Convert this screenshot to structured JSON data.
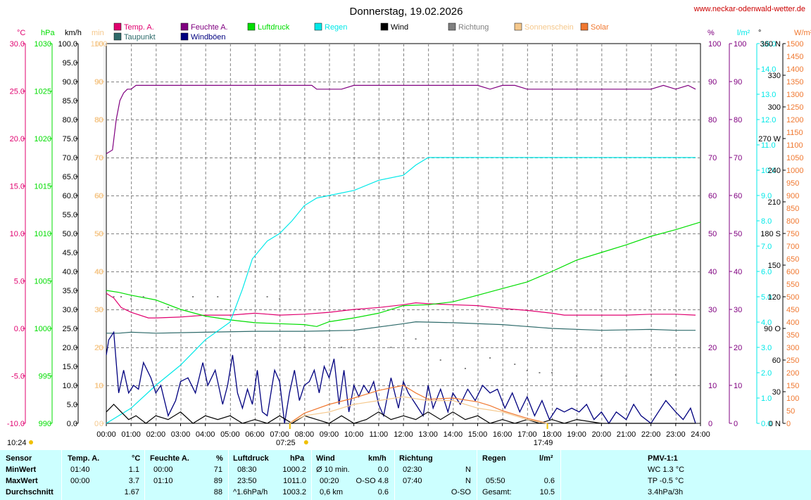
{
  "page": {
    "title": "Donnerstag, 19.02.2026",
    "site": "www.neckar-odenwald-wetter.de",
    "sunrise": "07:25",
    "sunset": "17:49",
    "moment": "10:24"
  },
  "colors": {
    "temp": "#e0006f",
    "humidity": "#800080",
    "pressure": "#00dd00",
    "rain": "#00e8e8",
    "wind": "#000000",
    "direction": "#808080",
    "sunshine": "#f5c88c",
    "solar": "#f07830",
    "dewpoint": "#2f6b6b",
    "gust": "#00007f",
    "grid": "#808080"
  },
  "legend": [
    {
      "label": "Temp. A.",
      "color": "#e0006f",
      "icon": "square-icon"
    },
    {
      "label": "Taupunkt",
      "color": "#2f6b6b",
      "icon": "square-icon"
    },
    {
      "label": "Feuchte A.",
      "color": "#800080",
      "icon": "square-icon"
    },
    {
      "label": "Windböen",
      "color": "#00007f",
      "icon": "square-icon"
    },
    {
      "label": "Luftdruck",
      "color": "#00dd00",
      "icon": "square-icon"
    },
    {
      "label": "Regen",
      "color": "#00e8e8",
      "icon": "square-icon"
    },
    {
      "label": "Wind",
      "color": "#000000",
      "icon": "square-icon"
    },
    {
      "label": "Richtung",
      "color": "#808080",
      "icon": "square-icon"
    },
    {
      "label": "Sonnenschein",
      "color": "#f5c88c",
      "icon": "square-icon"
    },
    {
      "label": "Solar",
      "color": "#f07830",
      "icon": "square-icon"
    }
  ],
  "stats": {
    "headers": {
      "sensor": "Sensor",
      "temp": "Temp. A.",
      "temp_unit": "°C",
      "hum": "Feuchte A.",
      "hum_unit": "%",
      "press": "Luftdruck",
      "press_unit": "hPa",
      "wind": "Wind",
      "wind_unit": "km/h",
      "dir": "Richtung",
      "rain": "Regen",
      "rain_unit": "l/m²",
      "pmv": "PMV-1:1"
    },
    "rows": [
      {
        "label": "MinWert",
        "temp_time": "01:40",
        "temp_val": "1.1",
        "hum_time": "00:00",
        "hum_val": "71",
        "press_time": "08:30",
        "press_val": "1000.2",
        "wind_time": "Ø 10 min.",
        "wind_val": "0.0",
        "dir_time": "02:30",
        "dir_val": "N",
        "rain_time": "",
        "rain_val": "",
        "pmv": "WC 1.3 °C"
      },
      {
        "label": "MaxWert",
        "temp_time": "00:00",
        "temp_val": "3.7",
        "hum_time": "01:10",
        "hum_val": "89",
        "press_time": "23:50",
        "press_val": "1011.0",
        "wind_time": "00:20",
        "wind_val": "O-SO 4.8",
        "dir_time": "07:40",
        "dir_val": "N",
        "rain_time": "05:50",
        "rain_val": "0.6",
        "pmv": "TP -0.5 °C"
      },
      {
        "label": "Durchschnitt",
        "temp_time": "",
        "temp_val": "1.67",
        "hum_time": "",
        "hum_val": "88",
        "press_time": "^1.6hPa/h",
        "press_val": "1003.2",
        "wind_time": "0,6 km",
        "wind_val": "0.6",
        "dir_time": "",
        "dir_val": "O-SO",
        "rain_time": "Gesamt:",
        "rain_val": "10.5",
        "pmv": "3.4hPa/3h"
      }
    ]
  },
  "chart_data": {
    "type": "line",
    "title": "Donnerstag, 19.02.2026",
    "x_unit": "time of day",
    "x_ticks": [
      "00:00",
      "01:00",
      "02:00",
      "03:00",
      "04:00",
      "05:00",
      "06:00",
      "07:00",
      "08:00",
      "09:00",
      "10:00",
      "11:00",
      "12:00",
      "13:00",
      "14:00",
      "15:00",
      "16:00",
      "17:00",
      "18:00",
      "19:00",
      "20:00",
      "21:00",
      "22:00",
      "23:00",
      "24:00"
    ],
    "x_range": [
      0,
      24
    ],
    "grid": true,
    "axes": {
      "temp": {
        "unit": "°C",
        "range": [
          -10,
          30
        ],
        "ticks": [
          "30.0",
          "25.0",
          "20.0",
          "15.0",
          "10.0",
          "5.0",
          "0.0",
          "-5.0",
          "-10.0"
        ]
      },
      "pressure": {
        "unit": "hPa",
        "range": [
          990,
          1030
        ],
        "ticks": [
          "1030",
          "1025",
          "1020",
          "1015",
          "1010",
          "1005",
          "1000",
          "995",
          "990"
        ]
      },
      "wind": {
        "unit": "km/h",
        "range": [
          0,
          100
        ],
        "ticks": [
          "100.0",
          "95.0",
          "90.0",
          "85.0",
          "80.0",
          "75.0",
          "70.0",
          "65.0",
          "60.0",
          "55.0",
          "50.0",
          "45.0",
          "40.0",
          "35.0",
          "30.0",
          "25.0",
          "20.0",
          "15.0",
          "10.0",
          "5.0",
          "0.0"
        ]
      },
      "sunshine": {
        "unit": "min",
        "range": [
          0,
          100
        ],
        "ticks": [
          "100",
          "90",
          "80",
          "70",
          "60",
          "50",
          "40",
          "30",
          "20",
          "10",
          "0"
        ]
      },
      "humidity": {
        "unit": "%",
        "range": [
          0,
          100
        ],
        "ticks": [
          "100",
          "90",
          "80",
          "70",
          "60",
          "50",
          "40",
          "30",
          "20",
          "10",
          "0"
        ]
      },
      "rain": {
        "unit": "l/m²",
        "range": [
          0,
          15
        ],
        "ticks": [
          "15.0",
          "14.0",
          "13.0",
          "12.0",
          "11.0",
          "10.0",
          "9.0",
          "8.0",
          "7.0",
          "6.0",
          "5.0",
          "4.0",
          "3.0",
          "2.0",
          "1.0",
          "0.0"
        ]
      },
      "direction": {
        "unit": "°",
        "range": [
          0,
          360
        ],
        "ticks": [
          "360 N",
          "330",
          "300",
          "270 W",
          "240",
          "210",
          "180 S",
          "150",
          "120",
          "90 O",
          "60",
          "30",
          "0 N"
        ]
      },
      "solar": {
        "unit": "W/m²",
        "range": [
          0,
          1500
        ],
        "ticks": [
          "1500",
          "1450",
          "1400",
          "1350",
          "1300",
          "1250",
          "1200",
          "1150",
          "1100",
          "1050",
          "1000",
          "950",
          "900",
          "850",
          "800",
          "750",
          "700",
          "650",
          "600",
          "550",
          "500",
          "450",
          "400",
          "350",
          "300",
          "250",
          "200",
          "150",
          "100",
          "50",
          "0"
        ]
      }
    },
    "series": [
      {
        "name": "Feuchte A.",
        "axis": "humidity",
        "x": [
          0,
          0.25,
          0.4,
          0.55,
          0.7,
          0.85,
          1,
          1.2,
          1.4,
          1.6,
          2,
          4,
          6,
          8,
          8.3,
          8.5,
          9,
          9.5,
          10,
          10.5,
          11,
          12,
          13,
          14,
          15,
          15.5,
          16,
          16.5,
          17,
          17.5,
          18,
          18.5,
          19,
          20,
          21,
          22,
          22.5,
          23,
          23.5,
          23.8
        ],
        "values": [
          71,
          72,
          80,
          85,
          87,
          88,
          88,
          89,
          89,
          89,
          89,
          89,
          89,
          89,
          89,
          88,
          88,
          88,
          89,
          89,
          89,
          89,
          89,
          89,
          89,
          88,
          89,
          89,
          88,
          88,
          88,
          88,
          88,
          88,
          88,
          88,
          89,
          88,
          89,
          88
        ]
      },
      {
        "name": "Temp. A.",
        "axis": "temp",
        "x": [
          0,
          0.3,
          0.6,
          1,
          1.7,
          2,
          3,
          4,
          5,
          6,
          7,
          8,
          9,
          10,
          11,
          12,
          12.5,
          13,
          14,
          15,
          16,
          17,
          18,
          18.5,
          19,
          20,
          21,
          22,
          23,
          23.8
        ],
        "values": [
          3.7,
          3.2,
          2.2,
          1.7,
          1.1,
          1.1,
          1.2,
          1.4,
          1.4,
          1.6,
          1.4,
          1.5,
          1.7,
          2.0,
          2.2,
          2.5,
          2.7,
          2.6,
          2.5,
          2.4,
          2.1,
          1.9,
          1.6,
          1.4,
          1.4,
          1.4,
          1.4,
          1.5,
          1.5,
          1.4
        ]
      },
      {
        "name": "Taupunkt",
        "axis": "temp",
        "x": [
          0,
          0.5,
          1,
          2,
          4,
          6,
          8,
          10,
          12,
          12.5,
          14,
          16,
          17,
          18,
          20,
          22,
          23,
          23.8
        ],
        "values": [
          -0.5,
          -0.5,
          -0.4,
          -0.5,
          -0.4,
          -0.3,
          -0.3,
          -0.2,
          0.5,
          0.7,
          0.6,
          0.4,
          0.2,
          0,
          -0.2,
          -0.1,
          -0.2,
          -0.2
        ]
      },
      {
        "name": "Luftdruck",
        "axis": "pressure",
        "x": [
          0,
          0.5,
          1,
          2,
          3,
          4,
          5,
          6,
          7,
          8,
          8.5,
          9,
          10,
          11,
          12,
          13,
          14,
          15,
          16,
          17,
          18,
          19,
          20,
          21,
          22,
          23,
          24
        ],
        "values": [
          1004.0,
          1003.8,
          1003.5,
          1003.0,
          1002.0,
          1001.3,
          1000.9,
          1000.6,
          1000.5,
          1000.4,
          1000.2,
          1000.7,
          1001.1,
          1001.6,
          1002.4,
          1002.5,
          1002.8,
          1003.5,
          1004.2,
          1004.9,
          1006.0,
          1007.2,
          1008.0,
          1008.8,
          1009.7,
          1010.4,
          1011.2
        ]
      },
      {
        "name": "Regen",
        "axis": "rain",
        "x": [
          0,
          1,
          2,
          3,
          4,
          5,
          5.5,
          5.9,
          6.5,
          7,
          7.5,
          8,
          8.5,
          9,
          10,
          11,
          12,
          12.5,
          13,
          14,
          15,
          16,
          17,
          18,
          19,
          20,
          21,
          22,
          23,
          23.8
        ],
        "values": [
          0,
          0.6,
          1.5,
          2.3,
          3.3,
          4.0,
          5.3,
          6.5,
          7.2,
          7.5,
          8.0,
          8.6,
          8.9,
          9.0,
          9.2,
          9.6,
          9.8,
          10.2,
          10.5,
          10.5,
          10.5,
          10.5,
          10.5,
          10.5,
          10.5,
          10.5,
          10.5,
          10.5,
          10.5,
          10.5
        ]
      },
      {
        "name": "Windböen",
        "axis": "wind",
        "x": [
          0,
          0.1,
          0.3,
          0.5,
          0.7,
          0.9,
          1.1,
          1.3,
          1.5,
          1.8,
          2.0,
          2.2,
          2.5,
          2.8,
          3.0,
          3.3,
          3.6,
          3.9,
          4.1,
          4.4,
          4.7,
          4.9,
          5.1,
          5.3,
          5.5,
          5.7,
          5.9,
          6.1,
          6.3,
          6.5,
          6.8,
          7.0,
          7.2,
          7.4,
          7.6,
          7.8,
          8.0,
          8.2,
          8.4,
          8.6,
          8.8,
          9.0,
          9.2,
          9.4,
          9.6,
          9.8,
          10.0,
          10.2,
          10.4,
          10.6,
          10.8,
          11.0,
          11.2,
          11.5,
          11.8,
          12.0,
          12.2,
          12.5,
          12.8,
          13.0,
          13.2,
          13.5,
          13.8,
          14.0,
          14.3,
          14.6,
          14.9,
          15.2,
          15.5,
          15.8,
          16.1,
          16.4,
          16.7,
          17.0,
          17.3,
          17.6,
          17.9,
          18.2,
          18.5,
          18.8,
          19.1,
          19.4,
          19.7,
          20.0,
          20.3,
          20.6,
          21.0,
          21.3,
          21.6,
          22.0,
          22.3,
          22.6,
          23.0,
          23.3,
          23.6,
          23.8
        ],
        "values": [
          18,
          22,
          24,
          8,
          14,
          8,
          10,
          9,
          16,
          12,
          8,
          10,
          2,
          6,
          11,
          12,
          8,
          16,
          10,
          14,
          5,
          10,
          18,
          8,
          4,
          9,
          5,
          14,
          3,
          2,
          14,
          11,
          0,
          8,
          14,
          6,
          10,
          11,
          14,
          8,
          15,
          12,
          17,
          5,
          14,
          3,
          10,
          7,
          10,
          8,
          11,
          5,
          2,
          12,
          4,
          11,
          8,
          5,
          2,
          10,
          4,
          9,
          3,
          8,
          5,
          9,
          6,
          10,
          8,
          9,
          4,
          8,
          3,
          7,
          2,
          6,
          1,
          4,
          3,
          4,
          3,
          5,
          1,
          3,
          0,
          3,
          1,
          5,
          2,
          0,
          3,
          6,
          3,
          1,
          4,
          0
        ]
      },
      {
        "name": "Wind",
        "axis": "wind",
        "x": [
          0,
          0.3,
          0.6,
          0.9,
          1.2,
          1.6,
          2,
          2.5,
          3,
          3.5,
          4,
          4.5,
          5,
          5.5,
          6,
          6.5,
          7,
          7.5,
          8,
          8.5,
          9,
          9.5,
          10,
          10.5,
          11,
          11.5,
          12,
          12.5,
          13,
          13.5,
          14,
          14.5,
          15,
          15.5,
          16,
          16.5,
          17,
          17.5,
          18,
          18.5,
          19,
          20,
          21,
          22,
          23,
          23.8
        ],
        "values": [
          3,
          5,
          3,
          1,
          2,
          0,
          2,
          1,
          3,
          0,
          2,
          1,
          2,
          0,
          1,
          0,
          2,
          0,
          2,
          1,
          0,
          2,
          0,
          1,
          3,
          1,
          2,
          1,
          3,
          1,
          3,
          1,
          2,
          0,
          1,
          0,
          1,
          0,
          1,
          0,
          1,
          0,
          0,
          0,
          0,
          0
        ]
      },
      {
        "name": "Richtung",
        "axis": "direction",
        "x": [
          0.3,
          0.6,
          1.0,
          1.5,
          2.5,
          3.5,
          4.5,
          6.5,
          7.0,
          8.0,
          9.5,
          11.5,
          12.5,
          13.5,
          14.5,
          15.5,
          16.5,
          17.0,
          17.5,
          18.0,
          19.0,
          20.0,
          21.0,
          22.0,
          23.0
        ],
        "values": [
          120,
          120,
          118,
          120,
          110,
          120,
          120,
          120,
          118,
          72,
          72,
          72,
          80,
          60,
          52,
          62,
          56,
          50,
          48,
          48,
          45,
          45,
          45,
          46,
          46
        ]
      },
      {
        "name": "Solar",
        "axis": "solar",
        "x": [
          7.4,
          8,
          9,
          10,
          11,
          12,
          12.5,
          13,
          14,
          15,
          15.5,
          16,
          16.5,
          17,
          17.5,
          17.8
        ],
        "values": [
          0,
          40,
          75,
          100,
          130,
          150,
          120,
          95,
          100,
          85,
          70,
          50,
          35,
          20,
          8,
          0
        ]
      },
      {
        "name": "Sonnenschein",
        "axis": "sunshine",
        "x": [
          7.4,
          8,
          9,
          10,
          11,
          12,
          13,
          14,
          15,
          16,
          17,
          17.8
        ],
        "values": [
          0,
          2,
          3,
          5,
          6,
          7,
          6,
          6,
          4,
          3,
          1,
          0
        ]
      }
    ]
  }
}
